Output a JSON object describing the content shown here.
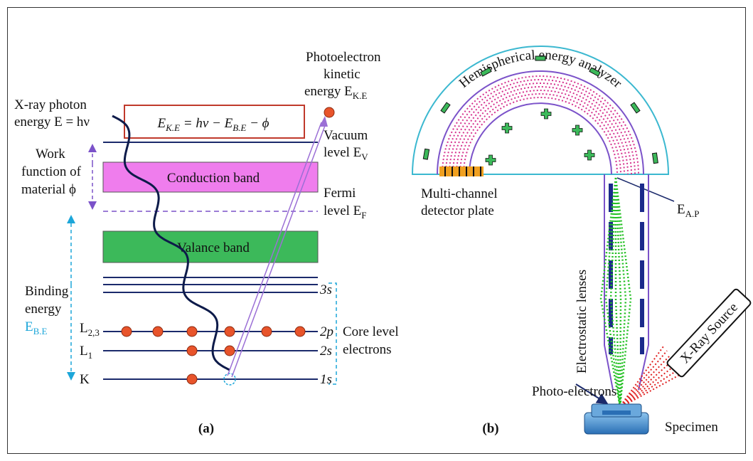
{
  "panel_a": {
    "photon": [
      "X-ray photon",
      "energy E = hν"
    ],
    "photoelectron": [
      "Photoelectron",
      "kinetic",
      [
        "energy E",
        "K.E"
      ]
    ],
    "equation": [
      "E",
      "K.E",
      " = hν − E",
      "B.E",
      " − ϕ"
    ],
    "vacuum": [
      "Vacuum",
      [
        "level E",
        "V"
      ]
    ],
    "work_function": [
      "Work",
      "function of",
      "material ϕ"
    ],
    "conduction_band": "Conduction band",
    "fermi": [
      "Fermi",
      [
        "level E",
        "F"
      ]
    ],
    "valence_band": "Valance band",
    "binding": [
      "Binding",
      "energy",
      [
        "E",
        "B.E"
      ]
    ],
    "orbitals": [
      "3s",
      "2p",
      "2s",
      "1s"
    ],
    "shells": [
      [
        "L",
        "2,3"
      ],
      [
        "L",
        "1"
      ],
      "K"
    ],
    "core": [
      "Core level",
      "electrons"
    ],
    "caption": "(a)"
  },
  "panel_b": {
    "analyzer": "Hemispherical energy analyzer",
    "detector": [
      "Multi-channel",
      "detector plate"
    ],
    "pass_energy": [
      "E",
      "A.P"
    ],
    "lenses": "Electrostatic lenses",
    "source": "X-Ray Source",
    "photo_electrons": "Photo-electrons",
    "specimen": "Specimen",
    "caption": "(b)"
  }
}
